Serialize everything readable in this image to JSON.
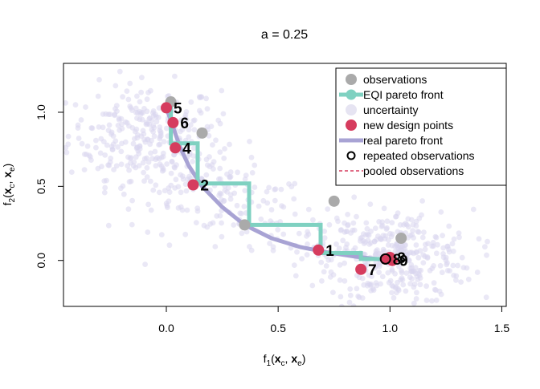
{
  "chart_data": {
    "type": "scatter",
    "title": "a = 0.25",
    "xlabel_main": "f",
    "xlabel_sub": "1",
    "xlabel_args": [
      "(",
      "x",
      "c",
      ", ",
      "x",
      "e",
      ")"
    ],
    "ylabel_main": "f",
    "ylabel_sub": "2",
    "ylabel_args": [
      "(",
      "x",
      "c",
      ", ",
      "x",
      "e",
      ")"
    ],
    "xlim": [
      -0.46,
      1.52
    ],
    "ylim": [
      -0.31,
      1.33
    ],
    "xticks": [
      0.0,
      0.5,
      1.0,
      1.5
    ],
    "xtick_labels": [
      "0.0",
      "0.5",
      "1.0",
      "1.5"
    ],
    "yticks": [
      0.0,
      0.5,
      1.0
    ],
    "ytick_labels": [
      "0.0",
      "0.5",
      "1.0"
    ],
    "legend_position": "top-right",
    "legend": [
      {
        "label": "observations",
        "kind": "point",
        "color": "#aaaaaa"
      },
      {
        "label": "EQI pareto front",
        "kind": "line-point",
        "color": "#7fd1c1"
      },
      {
        "label": "uncertainty",
        "kind": "point-light",
        "color": "#e6e4f2"
      },
      {
        "label": "new design points",
        "kind": "point",
        "color": "#d63c5e"
      },
      {
        "label": "real pareto front",
        "kind": "line",
        "color": "#a8a3d4"
      },
      {
        "label": "repeated observations",
        "kind": "ring",
        "color": "#000000"
      },
      {
        "label": "pooled observations",
        "kind": "dashed",
        "color": "#d63c5e"
      }
    ],
    "colors": {
      "observations": "#aaaaaa",
      "eqi_front": "#7fd1c1",
      "uncertainty": "#d9d6ee",
      "new_points": "#d63c5e",
      "real_front": "#a8a3d4"
    },
    "observations": [
      {
        "x": 0.02,
        "y": 1.07
      },
      {
        "x": 0.16,
        "y": 0.86
      },
      {
        "x": 0.35,
        "y": 0.24
      },
      {
        "x": 0.75,
        "y": 0.4
      },
      {
        "x": 1.05,
        "y": 0.15
      }
    ],
    "eqi_front": [
      {
        "x": 0.02,
        "y": 1.07
      },
      {
        "x": 0.02,
        "y": 0.79
      },
      {
        "x": 0.14,
        "y": 0.79
      },
      {
        "x": 0.14,
        "y": 0.52
      },
      {
        "x": 0.37,
        "y": 0.52
      },
      {
        "x": 0.37,
        "y": 0.24
      },
      {
        "x": 0.69,
        "y": 0.24
      },
      {
        "x": 0.69,
        "y": 0.05
      },
      {
        "x": 0.87,
        "y": 0.05
      },
      {
        "x": 0.87,
        "y": 0.01
      },
      {
        "x": 1.04,
        "y": 0.01
      }
    ],
    "real_front": [
      {
        "x": 0.0,
        "y": 1.03
      },
      {
        "x": 0.03,
        "y": 0.9
      },
      {
        "x": 0.06,
        "y": 0.77
      },
      {
        "x": 0.1,
        "y": 0.64
      },
      {
        "x": 0.16,
        "y": 0.5
      },
      {
        "x": 0.25,
        "y": 0.36
      },
      {
        "x": 0.35,
        "y": 0.24
      },
      {
        "x": 0.47,
        "y": 0.15
      },
      {
        "x": 0.6,
        "y": 0.09
      },
      {
        "x": 0.72,
        "y": 0.055
      },
      {
        "x": 0.85,
        "y": 0.025
      },
      {
        "x": 0.97,
        "y": 0.005
      },
      {
        "x": 1.03,
        "y": 0.0
      }
    ],
    "new_design_points": [
      {
        "x": 0.68,
        "y": 0.07,
        "label": "1"
      },
      {
        "x": 0.12,
        "y": 0.51,
        "label": "2"
      },
      {
        "x": 1.0,
        "y": 0.02,
        "label": "3"
      },
      {
        "x": 0.04,
        "y": 0.76,
        "label": "4"
      },
      {
        "x": 0.0,
        "y": 1.03,
        "label": "5"
      },
      {
        "x": 0.03,
        "y": 0.93,
        "label": "6"
      },
      {
        "x": 0.87,
        "y": -0.06,
        "label": "7"
      },
      {
        "x": 0.98,
        "y": 0.01,
        "label": "8"
      },
      {
        "x": 1.01,
        "y": 0.0,
        "label": "9"
      }
    ],
    "repeated_observations": [
      {
        "x": 0.98,
        "y": 0.01
      }
    ]
  }
}
